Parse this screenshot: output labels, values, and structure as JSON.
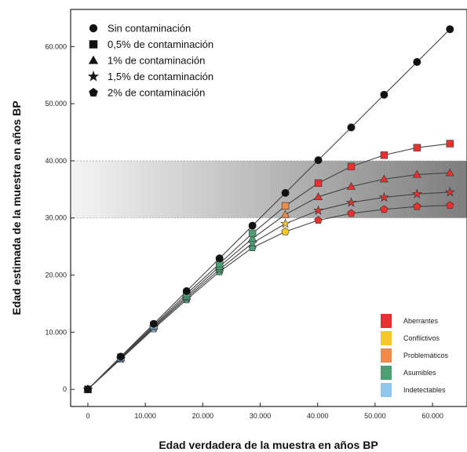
{
  "chart_data": {
    "type": "line",
    "xlabel": "Edad verdadera de la muestra en años BP",
    "ylabel": "Edad estimada de la muestra en años BP",
    "xlim": [
      -3000,
      66000
    ],
    "ylim": [
      -3000,
      66500
    ],
    "xticks": [
      0,
      10000,
      20000,
      30000,
      40000,
      50000,
      60000
    ],
    "xtick_labels": [
      "0",
      "10.000",
      "20.000",
      "30.000",
      "40.000",
      "50.000",
      "60.000"
    ],
    "yticks": [
      0,
      10000,
      20000,
      30000,
      40000,
      50000,
      60000
    ],
    "ytick_labels": [
      "0",
      "10.000",
      "20.000",
      "30.000",
      "40.000",
      "50.000",
      "60.000"
    ],
    "grid": false,
    "shaded_band": {
      "y_from": 30000,
      "y_to": 40000
    },
    "x": [
      0,
      5730,
      11460,
      17190,
      22920,
      28650,
      34380,
      40110,
      45840,
      51570,
      57300,
      63030
    ],
    "series": [
      {
        "name": "Sin contaminación",
        "marker": "circle",
        "values": [
          0,
          5730,
          11460,
          17190,
          22920,
          28650,
          34380,
          40110,
          45840,
          51570,
          57300,
          63030
        ]
      },
      {
        "name": "0,5% de contaminación",
        "marker": "square",
        "values": [
          0,
          5600,
          11200,
          16700,
          22000,
          27300,
          32100,
          36100,
          39000,
          41000,
          42300,
          43000
        ]
      },
      {
        "name": "1% de contaminación",
        "marker": "triangle",
        "values": [
          0,
          5500,
          11000,
          16300,
          21500,
          26400,
          30600,
          33700,
          35500,
          36800,
          37600,
          37900
        ]
      },
      {
        "name": "1,5% de contaminación",
        "marker": "star",
        "values": [
          0,
          5400,
          10800,
          16000,
          21000,
          25600,
          29000,
          31300,
          32700,
          33600,
          34200,
          34500
        ]
      },
      {
        "name": "2% de contaminación",
        "marker": "pentagon",
        "values": [
          0,
          5300,
          10600,
          15700,
          20600,
          24800,
          27600,
          29600,
          30800,
          31500,
          32000,
          32200
        ]
      }
    ],
    "fill_categories": [
      [
        1,
        1,
        1,
        1,
        1,
        1,
        1,
        1,
        1,
        1,
        1,
        1
      ],
      [
        5,
        5,
        5,
        4,
        4,
        4,
        3,
        1,
        1,
        1,
        1,
        1
      ],
      [
        5,
        5,
        5,
        4,
        4,
        4,
        3,
        1,
        1,
        1,
        1,
        1
      ],
      [
        5,
        5,
        5,
        4,
        4,
        4,
        2,
        1,
        1,
        1,
        1,
        1
      ],
      [
        5,
        5,
        5,
        4,
        4,
        4,
        2,
        1,
        1,
        1,
        1,
        1
      ]
    ],
    "categories_legend": [
      {
        "label": "Aberrantes",
        "color": "#e8302e"
      },
      {
        "label": "Conflictivos",
        "color": "#f7c62a"
      },
      {
        "label": "Problemáticos",
        "color": "#f08a4a"
      },
      {
        "label": "Asumibles",
        "color": "#4e9e74"
      },
      {
        "label": "Indetectables",
        "color": "#8fc6ea"
      }
    ],
    "legend_position": "top-left",
    "category_legend_position": "bottom-right",
    "colors": {
      "line": "#444444",
      "black_marker": "#111111",
      "frame": "#222222"
    }
  }
}
